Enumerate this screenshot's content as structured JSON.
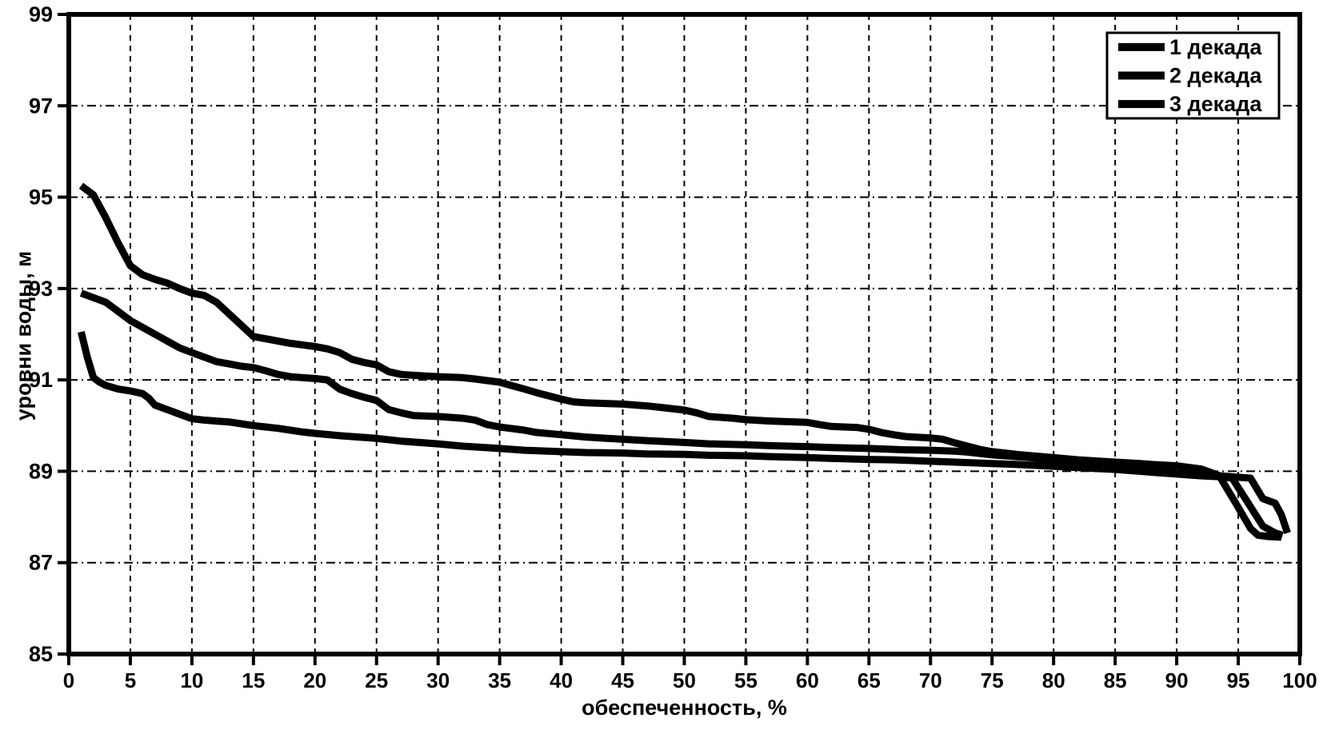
{
  "chart_data": {
    "type": "line",
    "title": "",
    "xlabel": "обеспеченность, %",
    "ylabel": "уровни воды, м",
    "xlim": [
      0,
      100
    ],
    "ylim": [
      85,
      99
    ],
    "xticks": [
      0,
      5,
      10,
      15,
      20,
      25,
      30,
      35,
      40,
      45,
      50,
      55,
      60,
      65,
      70,
      75,
      80,
      85,
      90,
      95,
      100
    ],
    "yticks": [
      85,
      87,
      89,
      91,
      93,
      95,
      97,
      99
    ],
    "grid": true,
    "legend_position": "top-right",
    "background": "#ffffff",
    "line_color": "#000000",
    "grid_color": "#000000",
    "series": [
      {
        "name": "1 декада",
        "points": [
          [
            1,
            95.25
          ],
          [
            2,
            95.05
          ],
          [
            3,
            94.55
          ],
          [
            4,
            94.0
          ],
          [
            5,
            93.5
          ],
          [
            6,
            93.3
          ],
          [
            7,
            93.2
          ],
          [
            8,
            93.12
          ],
          [
            9,
            93.0
          ],
          [
            10,
            92.9
          ],
          [
            11,
            92.85
          ],
          [
            12,
            92.7
          ],
          [
            13,
            92.45
          ],
          [
            14,
            92.2
          ],
          [
            15,
            91.95
          ],
          [
            16,
            91.9
          ],
          [
            17,
            91.85
          ],
          [
            18,
            91.8
          ],
          [
            20,
            91.73
          ],
          [
            21,
            91.68
          ],
          [
            22,
            91.6
          ],
          [
            23,
            91.45
          ],
          [
            24,
            91.38
          ],
          [
            25,
            91.33
          ],
          [
            26,
            91.18
          ],
          [
            27,
            91.12
          ],
          [
            28,
            91.1
          ],
          [
            30,
            91.07
          ],
          [
            32,
            91.05
          ],
          [
            33,
            91.02
          ],
          [
            35,
            90.95
          ],
          [
            37,
            90.8
          ],
          [
            38,
            90.72
          ],
          [
            40,
            90.58
          ],
          [
            41,
            90.52
          ],
          [
            42,
            90.5
          ],
          [
            44,
            90.48
          ],
          [
            45,
            90.47
          ],
          [
            47,
            90.43
          ],
          [
            48,
            90.4
          ],
          [
            50,
            90.34
          ],
          [
            51,
            90.28
          ],
          [
            52,
            90.2
          ],
          [
            54,
            90.16
          ],
          [
            55,
            90.13
          ],
          [
            57,
            90.1
          ],
          [
            60,
            90.07
          ],
          [
            61,
            90.02
          ],
          [
            62,
            89.98
          ],
          [
            64,
            89.96
          ],
          [
            65,
            89.92
          ],
          [
            66,
            89.85
          ],
          [
            67,
            89.8
          ],
          [
            68,
            89.76
          ],
          [
            70,
            89.73
          ],
          [
            71,
            89.7
          ],
          [
            72,
            89.62
          ],
          [
            73,
            89.55
          ],
          [
            74,
            89.48
          ],
          [
            75,
            89.43
          ],
          [
            77,
            89.37
          ],
          [
            80,
            89.3
          ],
          [
            82,
            89.25
          ],
          [
            85,
            89.2
          ],
          [
            87,
            89.17
          ],
          [
            88,
            89.15
          ],
          [
            90,
            89.12
          ],
          [
            92,
            89.05
          ],
          [
            93.5,
            88.9
          ],
          [
            95,
            88.87
          ],
          [
            96,
            88.85
          ],
          [
            97,
            88.4
          ],
          [
            98,
            88.3
          ],
          [
            98.5,
            88.05
          ],
          [
            99,
            87.65
          ]
        ]
      },
      {
        "name": "2 декада",
        "points": [
          [
            1,
            92.9
          ],
          [
            2,
            92.8
          ],
          [
            3,
            92.7
          ],
          [
            4,
            92.5
          ],
          [
            5,
            92.3
          ],
          [
            6,
            92.15
          ],
          [
            7,
            92.0
          ],
          [
            8,
            91.85
          ],
          [
            9,
            91.7
          ],
          [
            10,
            91.6
          ],
          [
            11,
            91.5
          ],
          [
            12,
            91.4
          ],
          [
            13,
            91.35
          ],
          [
            14,
            91.3
          ],
          [
            15,
            91.27
          ],
          [
            16,
            91.2
          ],
          [
            17,
            91.12
          ],
          [
            18,
            91.07
          ],
          [
            19,
            91.05
          ],
          [
            20,
            91.03
          ],
          [
            21,
            91.0
          ],
          [
            22,
            90.8
          ],
          [
            23,
            90.7
          ],
          [
            24,
            90.62
          ],
          [
            25,
            90.55
          ],
          [
            26,
            90.35
          ],
          [
            27,
            90.28
          ],
          [
            28,
            90.22
          ],
          [
            30,
            90.2
          ],
          [
            32,
            90.16
          ],
          [
            33,
            90.12
          ],
          [
            34,
            90.02
          ],
          [
            35,
            89.97
          ],
          [
            37,
            89.9
          ],
          [
            38,
            89.85
          ],
          [
            40,
            89.8
          ],
          [
            42,
            89.75
          ],
          [
            45,
            89.7
          ],
          [
            47,
            89.67
          ],
          [
            50,
            89.63
          ],
          [
            52,
            89.6
          ],
          [
            55,
            89.58
          ],
          [
            57,
            89.56
          ],
          [
            60,
            89.54
          ],
          [
            62,
            89.52
          ],
          [
            65,
            89.5
          ],
          [
            68,
            89.47
          ],
          [
            70,
            89.46
          ],
          [
            72,
            89.44
          ],
          [
            73,
            89.42
          ],
          [
            75,
            89.36
          ],
          [
            78,
            89.3
          ],
          [
            80,
            89.25
          ],
          [
            82,
            89.2
          ],
          [
            85,
            89.12
          ],
          [
            87,
            89.06
          ],
          [
            88,
            89.02
          ],
          [
            90,
            88.96
          ],
          [
            92,
            88.92
          ],
          [
            93,
            88.9
          ],
          [
            94.5,
            88.85
          ],
          [
            95.7,
            88.35
          ],
          [
            97,
            87.8
          ],
          [
            98,
            87.65
          ],
          [
            98.6,
            87.6
          ]
        ]
      },
      {
        "name": "3 декада",
        "points": [
          [
            1,
            92.05
          ],
          [
            1.5,
            91.5
          ],
          [
            2,
            91.05
          ],
          [
            2.5,
            90.95
          ],
          [
            3,
            90.88
          ],
          [
            4,
            90.8
          ],
          [
            5,
            90.76
          ],
          [
            6,
            90.7
          ],
          [
            6.5,
            90.6
          ],
          [
            7,
            90.45
          ],
          [
            8,
            90.35
          ],
          [
            9,
            90.25
          ],
          [
            10,
            90.15
          ],
          [
            11,
            90.12
          ],
          [
            12,
            90.1
          ],
          [
            13,
            90.08
          ],
          [
            14,
            90.04
          ],
          [
            15,
            90.0
          ],
          [
            16,
            89.97
          ],
          [
            17,
            89.94
          ],
          [
            18,
            89.9
          ],
          [
            19,
            89.86
          ],
          [
            20,
            89.83
          ],
          [
            22,
            89.78
          ],
          [
            25,
            89.72
          ],
          [
            27,
            89.66
          ],
          [
            30,
            89.6
          ],
          [
            32,
            89.55
          ],
          [
            35,
            89.5
          ],
          [
            37,
            89.46
          ],
          [
            40,
            89.43
          ],
          [
            42,
            89.41
          ],
          [
            45,
            89.4
          ],
          [
            47,
            89.38
          ],
          [
            50,
            89.37
          ],
          [
            52,
            89.35
          ],
          [
            55,
            89.34
          ],
          [
            57,
            89.32
          ],
          [
            60,
            89.3
          ],
          [
            62,
            89.28
          ],
          [
            65,
            89.26
          ],
          [
            67,
            89.25
          ],
          [
            70,
            89.22
          ],
          [
            72,
            89.2
          ],
          [
            75,
            89.17
          ],
          [
            77,
            89.15
          ],
          [
            80,
            89.11
          ],
          [
            82,
            89.08
          ],
          [
            85,
            89.04
          ],
          [
            87,
            89.0
          ],
          [
            88,
            88.98
          ],
          [
            90,
            88.94
          ],
          [
            92,
            88.9
          ],
          [
            93.5,
            88.88
          ],
          [
            94.8,
            88.3
          ],
          [
            96,
            87.75
          ],
          [
            96.6,
            87.6
          ],
          [
            97.5,
            87.57
          ],
          [
            98.5,
            87.56
          ]
        ]
      }
    ]
  }
}
